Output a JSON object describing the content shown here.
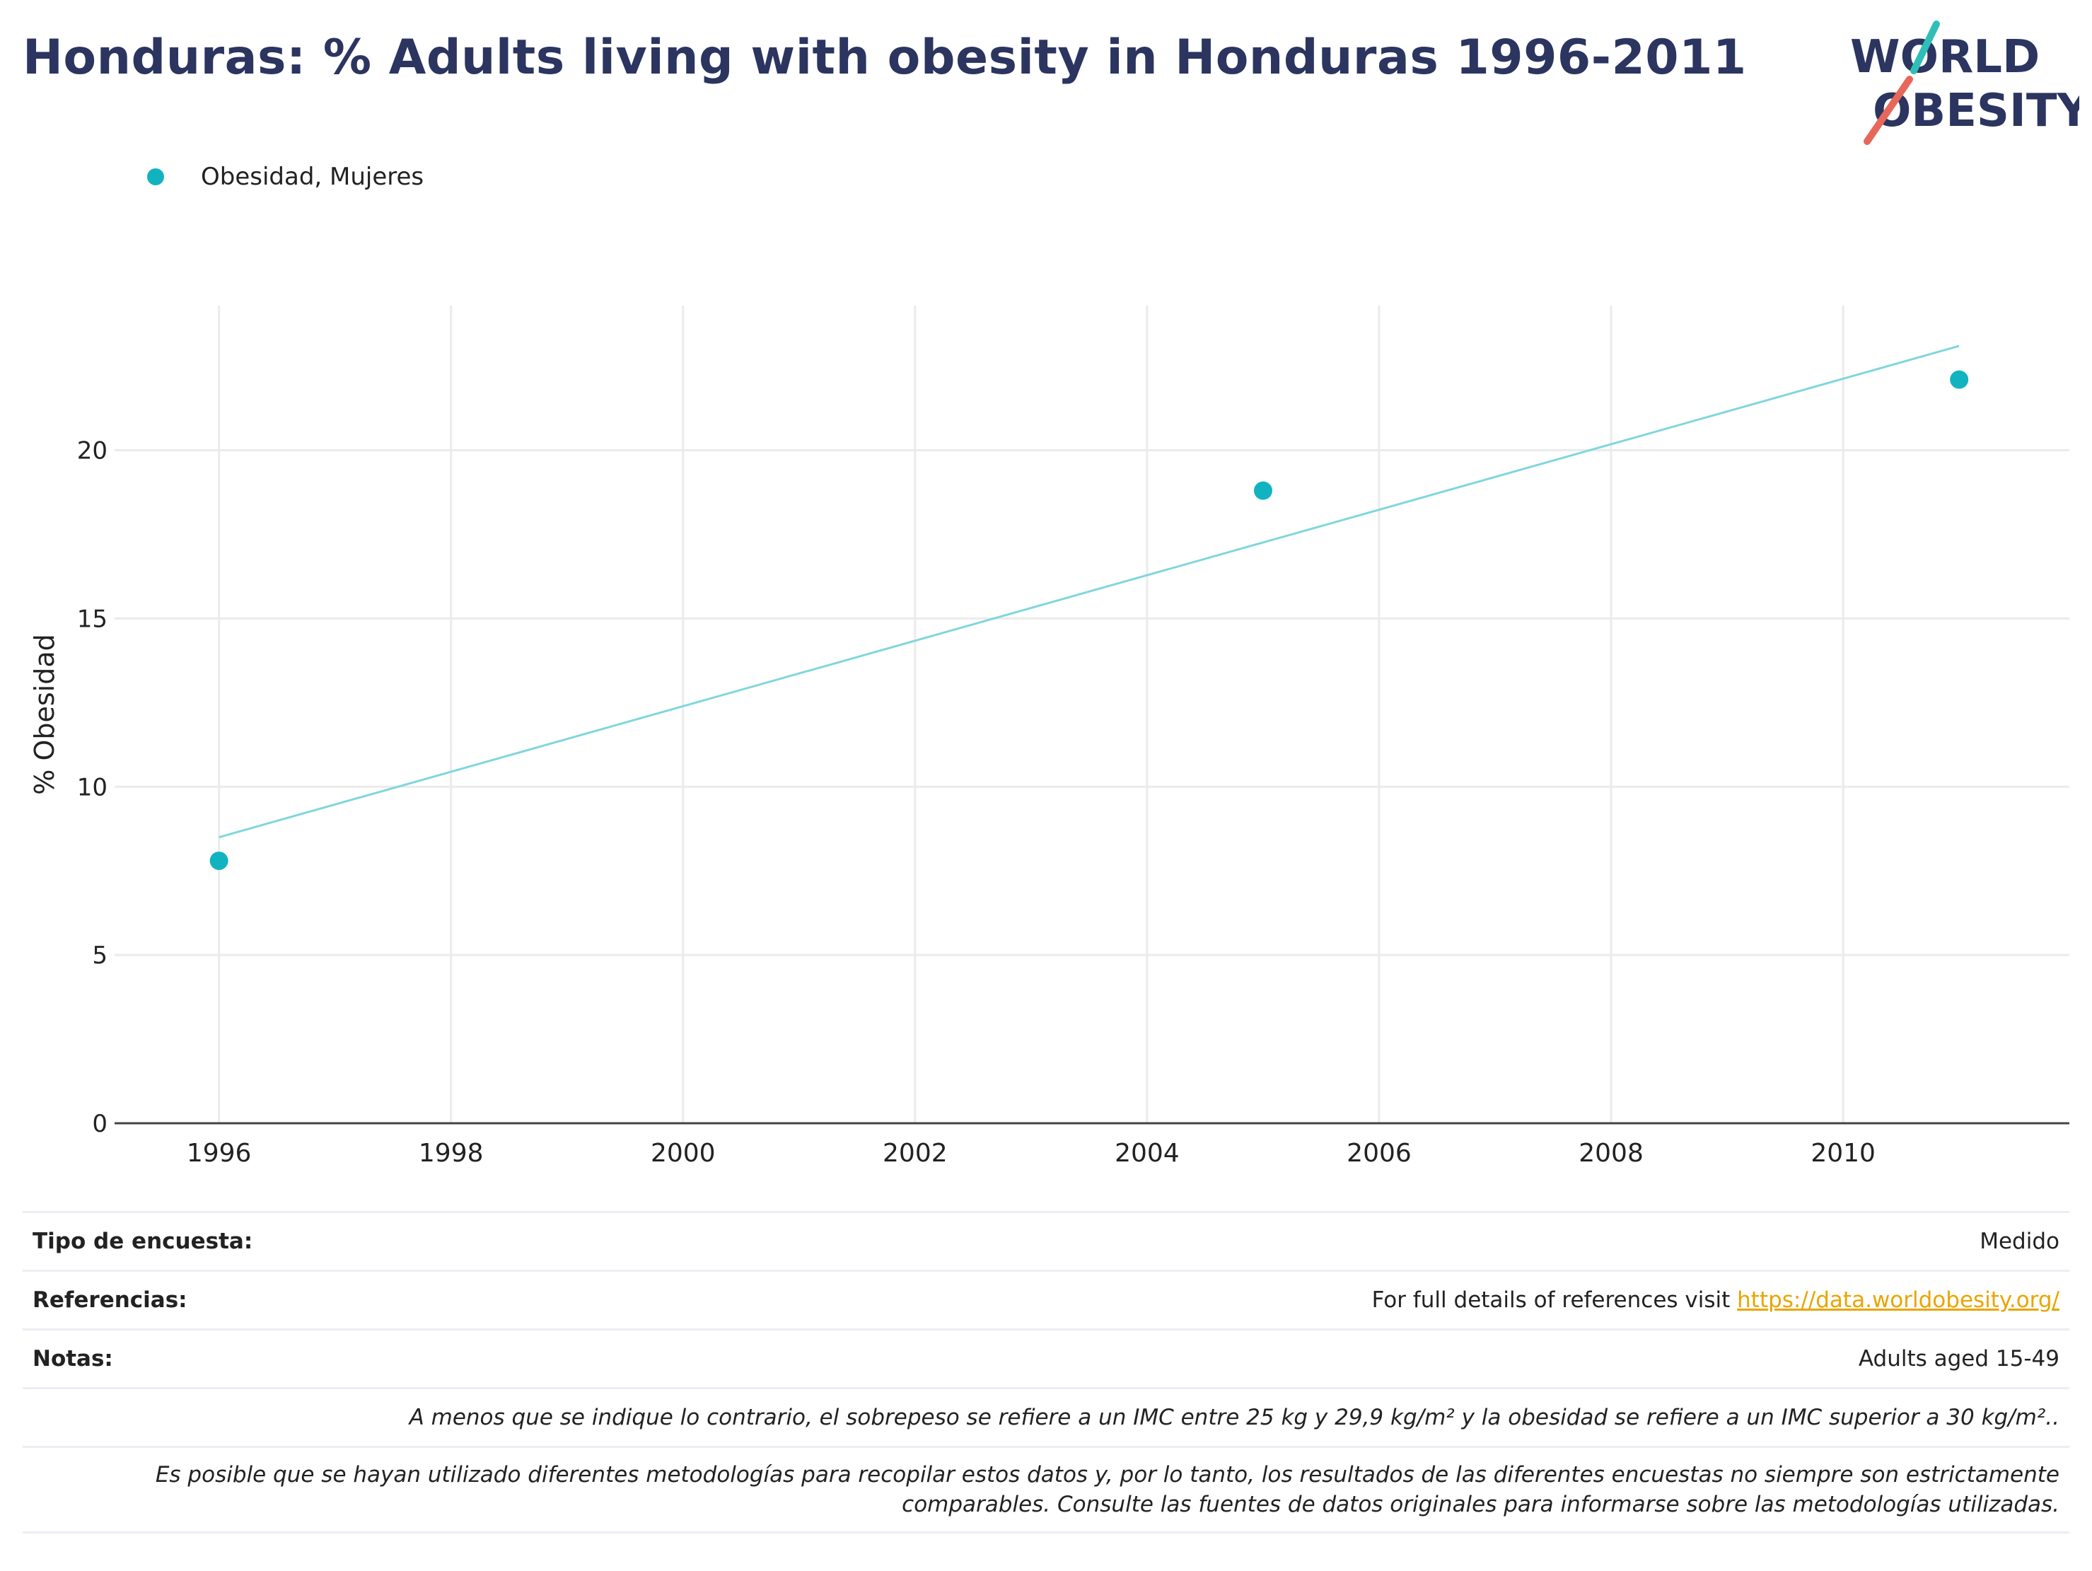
{
  "title": "Honduras: % Adults living with obesity in Honduras 1996-2011",
  "logo": {
    "line1": "WORLD",
    "line2": "OBESITY"
  },
  "legend": {
    "label": "Obesidad, Mujeres"
  },
  "colors": {
    "series": "#12b3c0",
    "trend": "#7fd7dc",
    "title": "#2b3560",
    "link": "#e9a500",
    "logo_teal": "#2fbfb8",
    "logo_red": "#e7685a"
  },
  "chart_data": {
    "type": "scatter",
    "ylabel": "% Obesidad",
    "xlabel": "",
    "xlim": [
      1995.1,
      2011.95
    ],
    "ylim": [
      0,
      24.3
    ],
    "x_ticks": [
      1996,
      1998,
      2000,
      2002,
      2004,
      2006,
      2008,
      2010
    ],
    "y_ticks": [
      0,
      5,
      10,
      15,
      20
    ],
    "grid": true,
    "legend_position": "top-left",
    "series": [
      {
        "name": "Obesidad, Mujeres",
        "x": [
          1996,
          2005,
          2011
        ],
        "y": [
          7.8,
          18.8,
          22.1
        ]
      }
    ],
    "trendline": {
      "x": [
        1996,
        2011
      ],
      "y": [
        8.5,
        23.1
      ]
    }
  },
  "info": {
    "survey_key": "Tipo de encuesta:",
    "survey_val": "Medido",
    "refs_key": "Referencias:",
    "refs_prefix": "For full details of references visit ",
    "refs_link": "https://data.worldobesity.org/",
    "notes_key": "Notas:",
    "notes_val": "Adults aged 15-49",
    "note1": "A menos que se indique lo contrario, el sobrepeso se refiere a un IMC entre 25 kg y 29,9 kg/m² y la obesidad se refiere a un IMC superior a 30 kg/m²..",
    "note2": "Es posible que se hayan utilizado diferentes metodologías para recopilar estos datos y, por lo tanto, los resultados de las diferentes encuestas no siempre son estrictamente comparables. Consulte las fuentes de datos originales para informarse sobre las metodologías utilizadas."
  }
}
